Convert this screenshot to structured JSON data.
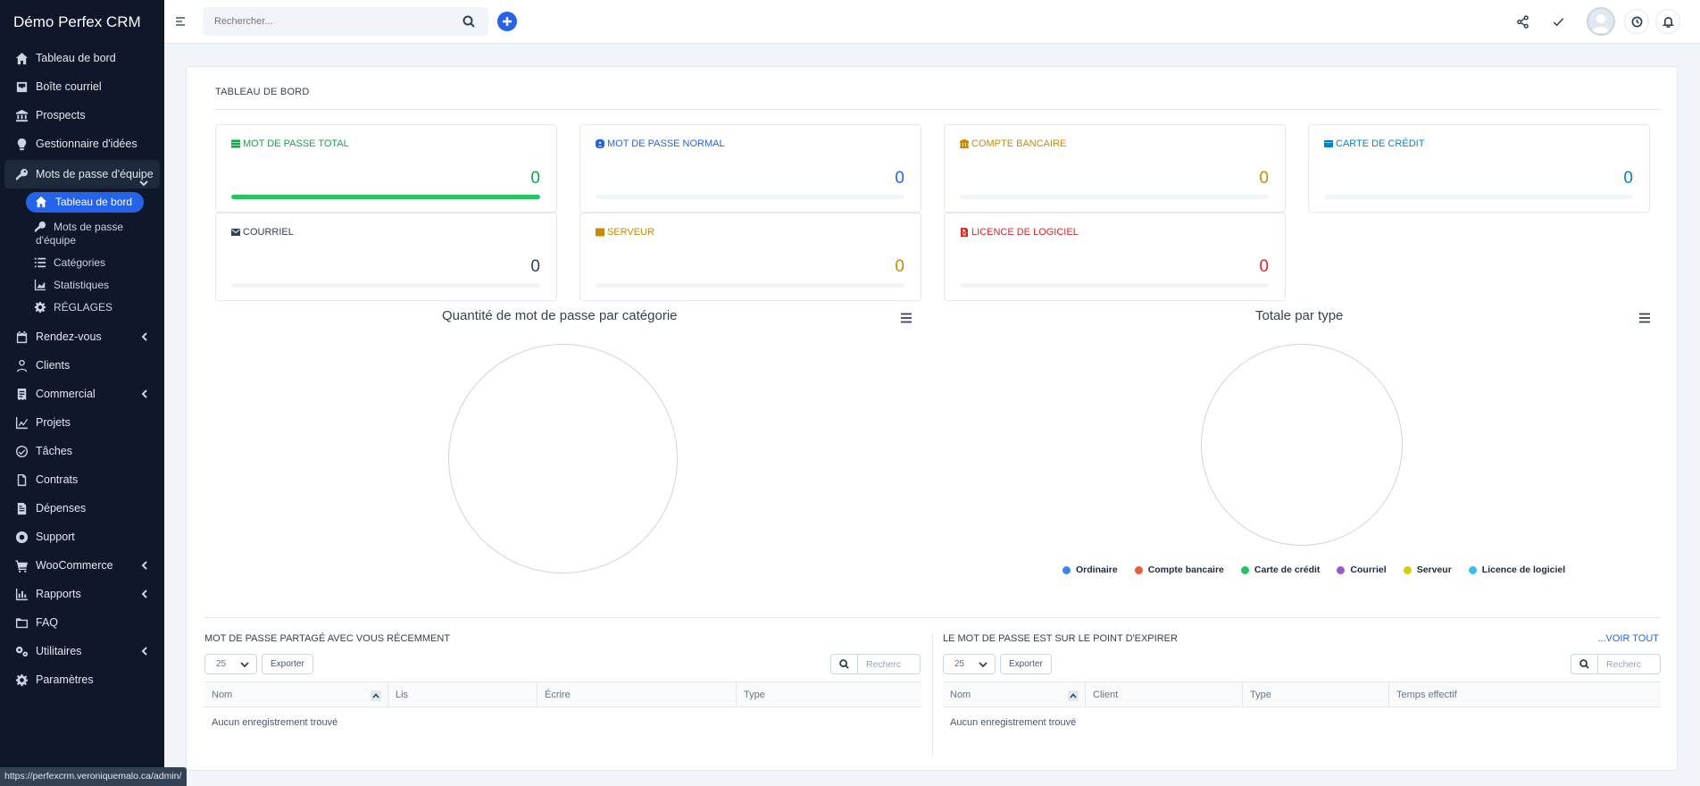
{
  "app": {
    "brand": "Démo Perfex CRM"
  },
  "header": {
    "search_placeholder": "Rechercher...",
    "icons": [
      "share-icon",
      "check-icon",
      "clock-icon",
      "bell-icon"
    ]
  },
  "sidebar": {
    "items": [
      {
        "label": "Tableau de bord",
        "icon": "home-icon"
      },
      {
        "label": "Boîte courriel",
        "icon": "inbox-icon"
      },
      {
        "label": "Prospects",
        "icon": "bank-icon"
      },
      {
        "label": "Gestionnaire d'idées",
        "icon": "bulb-icon"
      },
      {
        "label": "Mots de passe d'équipe",
        "icon": "key-icon"
      },
      {
        "label": "Rendez-vous",
        "icon": "calendar-icon"
      },
      {
        "label": "Clients",
        "icon": "user-icon"
      },
      {
        "label": "Commercial",
        "icon": "receipt-icon"
      },
      {
        "label": "Projets",
        "icon": "chart-icon"
      },
      {
        "label": "Tâches",
        "icon": "check-circle-icon"
      },
      {
        "label": "Contrats",
        "icon": "file-icon"
      },
      {
        "label": "Dépenses",
        "icon": "file-text-icon"
      },
      {
        "label": "Support",
        "icon": "lifebuoy-icon"
      },
      {
        "label": "WooCommerce",
        "icon": "cart-icon"
      },
      {
        "label": "Rapports",
        "icon": "bar-chart-icon"
      },
      {
        "label": "FAQ",
        "icon": "folder-icon"
      },
      {
        "label": "Utilitaires",
        "icon": "cogs-icon"
      },
      {
        "label": "Paramètres",
        "icon": "gear-icon"
      }
    ],
    "submenu": [
      {
        "label": "Tableau de bord",
        "icon": "home-icon"
      },
      {
        "label_line1": "Mots de passe",
        "label_line2": "d'équipe",
        "icon": "key-icon"
      },
      {
        "label": "Catégories",
        "icon": "list-icon"
      },
      {
        "label": "Statistiques",
        "icon": "area-chart-icon"
      },
      {
        "label": "RÉGLAGES",
        "icon": "gear-icon"
      }
    ]
  },
  "dashboard": {
    "title": "TABLEAU DE BORD",
    "stats": [
      {
        "label": "MOT DE PASSE TOTAL",
        "value": "0",
        "color": "#16a34a",
        "icon": "list-icon",
        "progress": 1.0
      },
      {
        "label": "MOT DE PASSE NORMAL",
        "value": "0",
        "color": "#2563eb",
        "icon": "user-circle-icon",
        "progress": 0
      },
      {
        "label": "COMPTE BANCAIRE",
        "value": "0",
        "color": "#ca8a04",
        "icon": "bank-icon",
        "progress": 0
      },
      {
        "label": "CARTE DE CRÉDIT",
        "value": "0",
        "color": "#0284c7",
        "icon": "credit-card-icon",
        "progress": 0
      },
      {
        "label": "COURRIEL",
        "value": "0",
        "color": "#334155",
        "icon": "envelope-icon",
        "progress": 0
      },
      {
        "label": "SERVEUR",
        "value": "0",
        "color": "#ca8a04",
        "icon": "server-icon",
        "progress": 0
      },
      {
        "label": "LICENCE DE LOGICIEL",
        "value": "0",
        "color": "#dc2626",
        "icon": "file-code-icon",
        "progress": 0
      }
    ]
  },
  "charts": {
    "left_title": "Quantité de mot de passe par catégorie",
    "right_title": "Totale par type",
    "legend": [
      {
        "label": "Ordinaire",
        "color": "#3b82f6"
      },
      {
        "label": "Compte bancaire",
        "color": "#ef5a3c"
      },
      {
        "label": "Carte de crédit",
        "color": "#22c55e"
      },
      {
        "label": "Courriel",
        "color": "#9b59d0"
      },
      {
        "label": "Serveur",
        "color": "#d4cc0a"
      },
      {
        "label": "Licence de logiciel",
        "color": "#38bdf8"
      }
    ]
  },
  "chart_data": [
    {
      "type": "pie",
      "title": "Quantité de mot de passe par catégorie",
      "categories": [],
      "values": []
    },
    {
      "type": "pie",
      "title": "Totale par type",
      "categories": [
        "Ordinaire",
        "Compte bancaire",
        "Carte de crédit",
        "Courriel",
        "Serveur",
        "Licence de logiciel"
      ],
      "values": [
        0,
        0,
        0,
        0,
        0,
        0
      ],
      "legend": "bottom"
    }
  ],
  "tables": {
    "shared": {
      "title": "MOT DE PASSE PARTAGÉ AVEC VOUS RÉCEMMENT",
      "page_size": "25",
      "export_label": "Exporter",
      "search_placeholder": "Recherc",
      "columns": [
        "Nom",
        "Lis",
        "Écrire",
        "Type"
      ],
      "empty": "Aucun enregistrement trouvé"
    },
    "expiring": {
      "title": "LE MOT DE PASSE EST SUR LE POINT D'EXPIRER",
      "view_all": "...VOIR TOUT",
      "page_size": "25",
      "export_label": "Exporter",
      "search_placeholder": "Recherc",
      "columns": [
        "Nom",
        "Client",
        "Type",
        "Temps effectif"
      ],
      "empty": "Aucun enregistrement trouvé"
    }
  },
  "status_bar": {
    "url": "https://perfexcrm.veroniquemalo.ca/admin/"
  }
}
